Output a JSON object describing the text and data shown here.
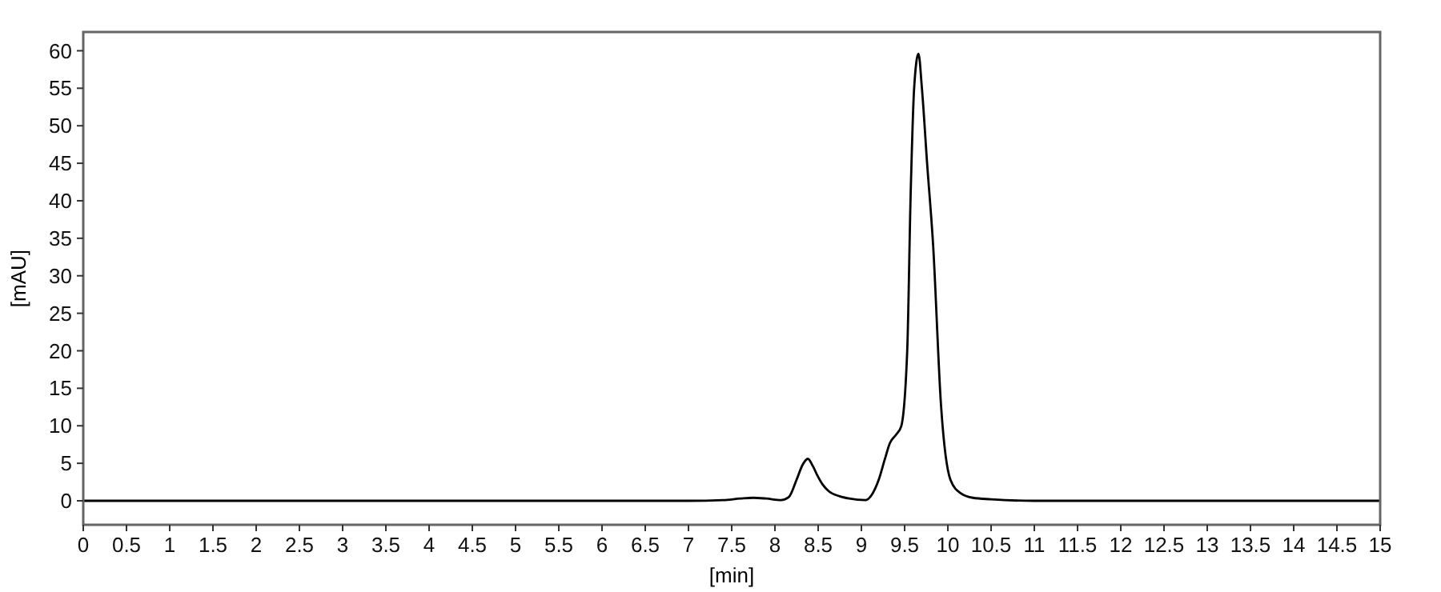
{
  "chart_data": {
    "type": "line",
    "xlabel": "[min]",
    "ylabel": "[mAU]",
    "xlim": [
      0,
      15
    ],
    "ylim": [
      -3.2,
      62.5
    ],
    "xticks": [
      0,
      0.5,
      1,
      1.5,
      2,
      2.5,
      3,
      3.5,
      4,
      4.5,
      5,
      5.5,
      6,
      6.5,
      7,
      7.5,
      8,
      8.5,
      9,
      9.5,
      10,
      10.5,
      11,
      11.5,
      12,
      12.5,
      13,
      13.5,
      14,
      14.5,
      15
    ],
    "yticks": [
      0,
      5,
      10,
      15,
      20,
      25,
      30,
      35,
      40,
      45,
      50,
      55,
      60
    ],
    "grid": false,
    "marker": "none",
    "line_style": "solid",
    "series": [
      {
        "color": "#000000",
        "x": [
          0,
          2,
          4,
          6,
          7,
          7.4,
          7.6,
          7.75,
          7.9,
          8.07,
          8.16,
          8.25,
          8.32,
          8.38,
          8.44,
          8.49,
          8.55,
          8.62,
          8.75,
          8.86,
          9.05,
          9.12,
          9.2,
          9.27,
          9.33,
          9.4,
          9.46,
          9.53,
          9.57,
          9.61,
          9.66,
          9.7,
          9.76,
          9.83,
          9.92,
          10.03,
          10.15,
          10.29,
          10.5,
          11,
          12,
          13,
          14,
          15
        ],
        "values": [
          0,
          0,
          0,
          0,
          0,
          0.1,
          0.3,
          0.4,
          0.3,
          0.1,
          0.5,
          2.8,
          4.8,
          5.6,
          4.6,
          3.4,
          2.2,
          1.3,
          0.6,
          0.3,
          0.1,
          0.8,
          2.8,
          5.5,
          7.7,
          8.8,
          9.9,
          20,
          41,
          55,
          59.6,
          55,
          45,
          34,
          12.9,
          2.8,
          1,
          0.4,
          0.2,
          0,
          0,
          0,
          0,
          0
        ]
      }
    ]
  }
}
